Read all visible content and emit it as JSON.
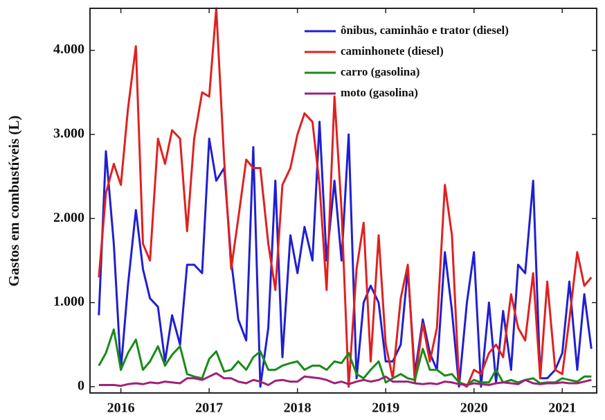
{
  "chart_data": {
    "type": "line",
    "y_label": "Gastos em combustíveis (L)",
    "x": [
      2015.75,
      2015.83,
      2015.92,
      2016,
      2016.08,
      2016.17,
      2016.25,
      2016.33,
      2016.42,
      2016.5,
      2016.58,
      2016.67,
      2016.75,
      2016.83,
      2016.92,
      2017,
      2017.08,
      2017.17,
      2017.25,
      2017.33,
      2017.42,
      2017.5,
      2017.58,
      2017.67,
      2017.75,
      2017.83,
      2017.92,
      2018,
      2018.08,
      2018.17,
      2018.25,
      2018.33,
      2018.42,
      2018.5,
      2018.58,
      2018.67,
      2018.75,
      2018.83,
      2018.92,
      2019,
      2019.08,
      2019.17,
      2019.25,
      2019.33,
      2019.42,
      2019.5,
      2019.58,
      2019.67,
      2019.75,
      2019.83,
      2019.92,
      2020,
      2020.08,
      2020.17,
      2020.25,
      2020.33,
      2020.42,
      2020.5,
      2020.58,
      2020.67,
      2020.75,
      2020.83,
      2020.92,
      2021,
      2021.08,
      2021.17,
      2021.25,
      2021.33
    ],
    "series": [
      {
        "name": "ônibus, caminhão e trator (diesel)",
        "color": "#1f1fd0",
        "values": [
          850,
          2800,
          1700,
          200,
          1200,
          2100,
          1400,
          1050,
          950,
          300,
          850,
          500,
          1450,
          1450,
          1350,
          2950,
          2450,
          2600,
          1500,
          800,
          550,
          2850,
          0,
          700,
          2450,
          350,
          1800,
          1350,
          1900,
          1500,
          3150,
          1500,
          2450,
          1500,
          3000,
          100,
          1000,
          1200,
          1000,
          300,
          300,
          500,
          1400,
          150,
          800,
          400,
          200,
          1600,
          900,
          0,
          1000,
          1600,
          0,
          1000,
          50,
          900,
          200,
          1450,
          1350,
          2450,
          100,
          100,
          200,
          400,
          1250,
          200,
          1100,
          450
        ]
      },
      {
        "name": "caminhonete (diesel)",
        "color": "#e02020",
        "values": [
          1300,
          2300,
          2650,
          2400,
          3300,
          4050,
          1700,
          1500,
          2950,
          2650,
          3050,
          2950,
          1850,
          2950,
          3500,
          3450,
          4500,
          2700,
          1400,
          2000,
          2700,
          2600,
          2600,
          1700,
          1150,
          2400,
          2600,
          3000,
          3250,
          3150,
          2400,
          1150,
          3450,
          2100,
          0,
          1400,
          1950,
          300,
          1800,
          500,
          100,
          1050,
          1450,
          50,
          750,
          300,
          700,
          2400,
          1800,
          50,
          0,
          200,
          150,
          400,
          500,
          350,
          1100,
          700,
          550,
          1350,
          100,
          1250,
          200,
          150,
          800,
          1600,
          1200,
          1300
        ]
      },
      {
        "name": "carro (gasolina)",
        "color": "#1a8a1a",
        "values": [
          250,
          400,
          680,
          200,
          400,
          560,
          200,
          300,
          480,
          250,
          380,
          480,
          150,
          120,
          100,
          330,
          420,
          180,
          200,
          300,
          200,
          350,
          420,
          200,
          200,
          250,
          280,
          300,
          200,
          250,
          250,
          200,
          300,
          280,
          400,
          150,
          100,
          200,
          300,
          50,
          100,
          150,
          100,
          80,
          450,
          200,
          200,
          130,
          150,
          50,
          20,
          80,
          50,
          50,
          200,
          50,
          80,
          50,
          80,
          100,
          40,
          50,
          50,
          100,
          80,
          60,
          120,
          120
        ]
      },
      {
        "name": "moto (gasolina)",
        "color": "#a0207a",
        "values": [
          20,
          20,
          20,
          10,
          30,
          40,
          30,
          50,
          40,
          60,
          50,
          40,
          100,
          100,
          80,
          120,
          160,
          100,
          100,
          60,
          40,
          80,
          60,
          20,
          70,
          80,
          60,
          60,
          120,
          110,
          100,
          80,
          40,
          60,
          30,
          60,
          80,
          60,
          80,
          120,
          60,
          60,
          60,
          40,
          30,
          40,
          30,
          60,
          50,
          30,
          20,
          40,
          30,
          20,
          40,
          50,
          40,
          30,
          80,
          40,
          30,
          40,
          40,
          50,
          40,
          40,
          60,
          80
        ]
      }
    ],
    "xlim": [
      2015.65,
      2021.39
    ],
    "xticks": [
      2016,
      2017,
      2018,
      2019,
      2020,
      2021
    ],
    "ylim": [
      -75,
      4500
    ],
    "yticks": [
      0,
      {
        "value": 1000,
        "label": "1.000"
      },
      {
        "value": 2000,
        "label": "2.000"
      },
      {
        "value": 3000,
        "label": "3.000"
      },
      {
        "value": 4000,
        "label": "4.000"
      }
    ],
    "legend": "upper right",
    "grid": false
  }
}
